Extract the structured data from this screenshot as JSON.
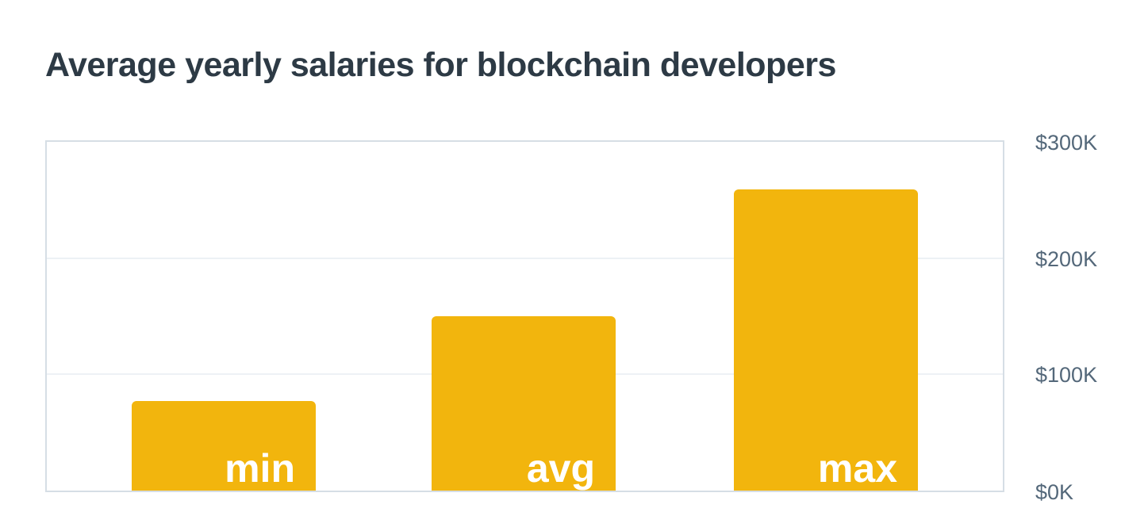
{
  "chart_data": {
    "type": "bar",
    "title": "Average yearly salaries for blockchain developers",
    "categories": [
      "min",
      "avg",
      "max"
    ],
    "values": [
      77000,
      150000,
      259000
    ],
    "values_display_unit": "USD per year",
    "xlabel": "",
    "ylabel": "",
    "ylim": [
      0,
      300000
    ],
    "y_ticks": [
      "$300K",
      "$200K",
      "$100K",
      "$0K"
    ],
    "y_tick_values": [
      300000,
      200000,
      100000,
      0
    ],
    "grid": "horizontal-only",
    "legend": "none",
    "tick_position": "right",
    "bar_label_position": "inside-bottom-right",
    "colors": {
      "bar": "#f2b50d",
      "bar_label": "#ffffff",
      "title": "#2d3a45",
      "axis_label": "#54687a",
      "plot_border": "#d6dee5",
      "gridline": "#edf1f5",
      "background": "#ffffff"
    }
  }
}
